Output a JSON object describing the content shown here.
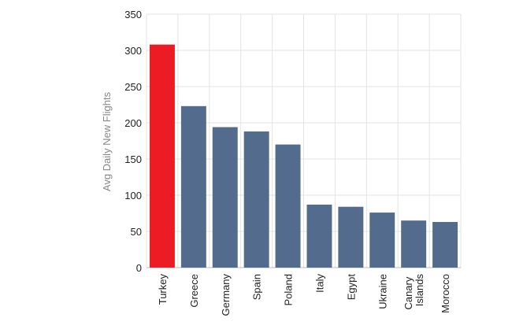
{
  "chart_data": {
    "type": "bar",
    "ylabel": "Avg Daily New Flights",
    "categories": [
      "Turkey",
      "Greece",
      "Germany",
      "Spain",
      "Poland",
      "Italy",
      "Egypt",
      "Ukraine",
      "Canary Islands",
      "Morocco"
    ],
    "values": [
      308,
      223,
      194,
      188,
      170,
      87,
      84,
      76,
      65,
      63
    ],
    "colors": [
      "#ed1c24",
      "#536b8c",
      "#536b8c",
      "#536b8c",
      "#536b8c",
      "#536b8c",
      "#536b8c",
      "#536b8c",
      "#536b8c",
      "#536b8c"
    ],
    "ylim": [
      0,
      350
    ],
    "yticks": [
      0,
      50,
      100,
      150,
      200,
      250,
      300,
      350
    ],
    "grid": true
  }
}
